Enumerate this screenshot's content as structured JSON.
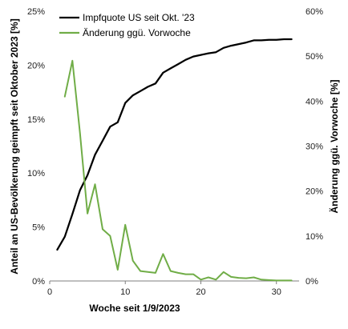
{
  "chart_data": {
    "type": "line",
    "xlabel": "Woche seit 1/9/2023",
    "ylabel_left": "Anteil an US-Bevölkerung geimpft seit Oktober 2023 [%]",
    "ylabel_right": "Änderung ggü. Vorwoche [%]",
    "xlim": [
      0,
      33
    ],
    "ylim_left": [
      0,
      25
    ],
    "ylim_right": [
      0,
      60
    ],
    "xticks": [
      0,
      10,
      20,
      30
    ],
    "yticks_left": [
      0,
      5,
      10,
      15,
      20,
      25
    ],
    "yticks_right": [
      0,
      10,
      20,
      30,
      40,
      50,
      60
    ],
    "ytick_format_left": "{v}%",
    "ytick_format_right": "{v}%",
    "legend_position": "top-left",
    "grid": false,
    "series": [
      {
        "name": "Impfquote US seit Okt. '23",
        "axis": "left",
        "color": "#000000",
        "x": [
          1,
          2,
          3,
          4,
          5,
          6,
          7,
          8,
          9,
          10,
          11,
          12,
          13,
          14,
          15,
          16,
          17,
          18,
          19,
          20,
          21,
          22,
          23,
          24,
          25,
          26,
          27,
          28,
          29,
          30,
          31,
          32
        ],
        "y": [
          2.9,
          4.1,
          6.2,
          8.4,
          9.8,
          11.7,
          13.0,
          14.3,
          14.7,
          16.5,
          17.2,
          17.6,
          18.0,
          18.3,
          19.3,
          19.7,
          20.1,
          20.5,
          20.8,
          20.95,
          21.1,
          21.2,
          21.6,
          21.8,
          21.95,
          22.1,
          22.3,
          22.3,
          22.35,
          22.35,
          22.4,
          22.4
        ]
      },
      {
        "name": "Änderung ggü. Vorwoche",
        "axis": "right",
        "color": "#70ad47",
        "x": [
          2,
          3,
          4,
          5,
          6,
          7,
          8,
          9,
          10,
          11,
          12,
          13,
          14,
          15,
          16,
          17,
          18,
          19,
          20,
          21,
          22,
          23,
          24,
          25,
          26,
          27,
          28,
          29,
          30,
          31,
          32
        ],
        "y": [
          41,
          49,
          33,
          15,
          21.5,
          11.5,
          10,
          2.5,
          12.5,
          4.5,
          2.2,
          2,
          1.8,
          6,
          2.2,
          1.8,
          1.5,
          1.5,
          0.3,
          0.8,
          0.3,
          2,
          0.9,
          0.7,
          0.6,
          0.8,
          0.3,
          0.2,
          0.1,
          0.1,
          0.1
        ]
      }
    ]
  }
}
